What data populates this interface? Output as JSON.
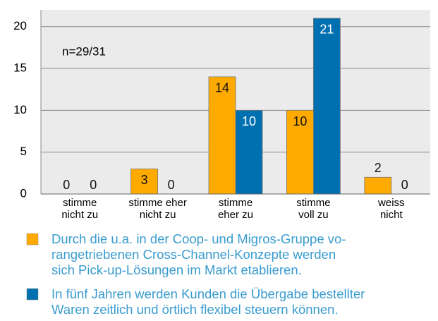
{
  "chart_data": {
    "type": "bar",
    "annotation": "n=29/31",
    "categories": [
      "stimme\nnicht zu",
      "stimme eher\nnicht zu",
      "stimme\neher zu",
      "stimme\nvoll zu",
      "weiss\nnicht"
    ],
    "series": [
      {
        "name": "Durch die u.a. in der Coop- und Migros-Gruppe vo-\nrangetriebenen Cross-Channel-Konzepte werden\nsich Pick-up-Lösungen im Markt etablieren.",
        "color": "#ffaa00",
        "values": [
          0,
          3,
          14,
          10,
          2
        ]
      },
      {
        "name": "In fünf Jahren werden Kunden die Übergabe bestellter\nWaren zeitlich und örtlich flexibel steuern können.",
        "color": "#0070b0",
        "values": [
          0,
          0,
          10,
          21,
          0
        ]
      }
    ],
    "ylim": [
      0,
      22
    ],
    "yticks": [
      0,
      5,
      10,
      15,
      20
    ],
    "grid": true
  }
}
